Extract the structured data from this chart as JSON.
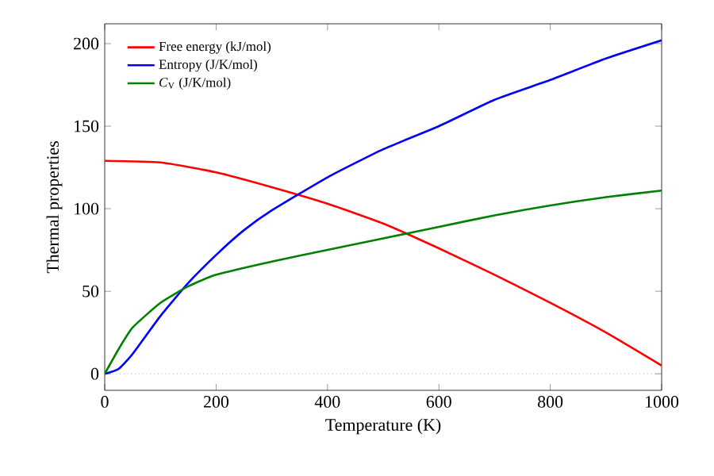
{
  "chart_data": {
    "type": "line",
    "xlabel": "Temperature (K)",
    "ylabel": "Thermal properties",
    "xlim": [
      0,
      1000
    ],
    "ylim": [
      -10,
      212
    ],
    "xticks": [
      0,
      200,
      400,
      600,
      800,
      1000
    ],
    "yticks": [
      0,
      50,
      100,
      150,
      200
    ],
    "legend": "top left",
    "grid": false,
    "marker": "none",
    "line_style": "solid",
    "ref_lines": [
      {
        "axis": "y",
        "value": 0,
        "color": "#808080",
        "line_style": "dotted"
      }
    ],
    "series": [
      {
        "name": "Free energy (kJ/mol)",
        "color": "#ff0000",
        "x": [
          0,
          100,
          200,
          300,
          400,
          500,
          600,
          700,
          800,
          900,
          1000
        ],
        "values": [
          129,
          128,
          122,
          113,
          103,
          91,
          76,
          60,
          43,
          25,
          5
        ]
      },
      {
        "name": "Entropy (J/K/mol)",
        "color": "#0000ff",
        "x": [
          0,
          25,
          50,
          100,
          150,
          200,
          250,
          300,
          400,
          500,
          600,
          700,
          800,
          900,
          1000
        ],
        "values": [
          0,
          3,
          12,
          35,
          55,
          72,
          87,
          99,
          119,
          136,
          150,
          166,
          178,
          191,
          202
        ]
      },
      {
        "name": "*C*$_{V}$ (J/K/mol)",
        "color": "#008000",
        "x": [
          0,
          25,
          50,
          100,
          150,
          200,
          300,
          400,
          500,
          600,
          700,
          800,
          900,
          1000
        ],
        "values": [
          0,
          15,
          28,
          43,
          53,
          60,
          68,
          75,
          82,
          89,
          96,
          102,
          107,
          111
        ]
      }
    ]
  }
}
